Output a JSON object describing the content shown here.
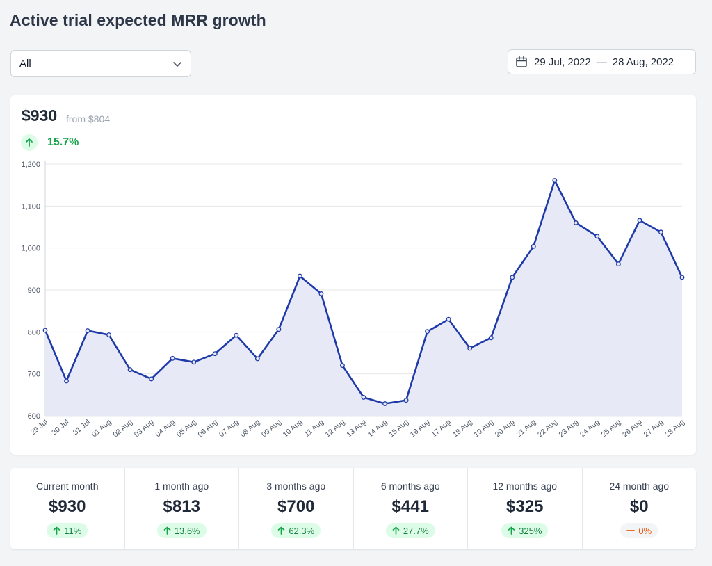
{
  "page": {
    "title": "Active trial expected MRR growth"
  },
  "filter": {
    "value": "All"
  },
  "date_range": {
    "start": "29 Jul, 2022",
    "separator": "—",
    "end": "28 Aug, 2022"
  },
  "summary": {
    "value": "$930",
    "from": "from $804",
    "change": "15.7%"
  },
  "chart_data": {
    "type": "area",
    "title": "",
    "xlabel": "",
    "ylabel": "",
    "ylim": [
      600,
      1200
    ],
    "yticks": [
      600,
      700,
      800,
      900,
      1000,
      1100,
      1200
    ],
    "ytick_labels": [
      "600",
      "700",
      "800",
      "900",
      "1,000",
      "1,100",
      "1,200"
    ],
    "grid": true,
    "categories": [
      "29 Jul",
      "30 Jul",
      "31 Jul",
      "01 Aug",
      "02 Aug",
      "03 Aug",
      "04 Aug",
      "05 Aug",
      "06 Aug",
      "07 Aug",
      "08 Aug",
      "09 Aug",
      "10 Aug",
      "11 Aug",
      "12 Aug",
      "13 Aug",
      "14 Aug",
      "15 Aug",
      "16 Aug",
      "17 Aug",
      "18 Aug",
      "19 Aug",
      "20 Aug",
      "21 Aug",
      "22 Aug",
      "23 Aug",
      "24 Aug",
      "25 Aug",
      "26 Aug",
      "27 Aug",
      "28 Aug"
    ],
    "values": [
      804,
      683,
      803,
      793,
      710,
      688,
      737,
      728,
      748,
      792,
      736,
      806,
      933,
      891,
      720,
      644,
      629,
      637,
      801,
      830,
      761,
      786,
      930,
      1004,
      1161,
      1060,
      1028,
      962,
      1066,
      1038,
      930
    ],
    "colors": {
      "line": "#1e3aa8",
      "fill": "#e8e9f7"
    }
  },
  "stats": [
    {
      "label": "Current month",
      "value": "$930",
      "change": "11%",
      "trend": "up"
    },
    {
      "label": "1 month ago",
      "value": "$813",
      "change": "13.6%",
      "trend": "up"
    },
    {
      "label": "3 months ago",
      "value": "$700",
      "change": "62.3%",
      "trend": "up"
    },
    {
      "label": "6 months ago",
      "value": "$441",
      "change": "27.7%",
      "trend": "up"
    },
    {
      "label": "12 months ago",
      "value": "$325",
      "change": "325%",
      "trend": "up"
    },
    {
      "label": "24 month ago",
      "value": "$0",
      "change": "0%",
      "trend": "flat"
    }
  ],
  "colors": {
    "positive": "#16a34a",
    "neutral": "#ea580c"
  }
}
